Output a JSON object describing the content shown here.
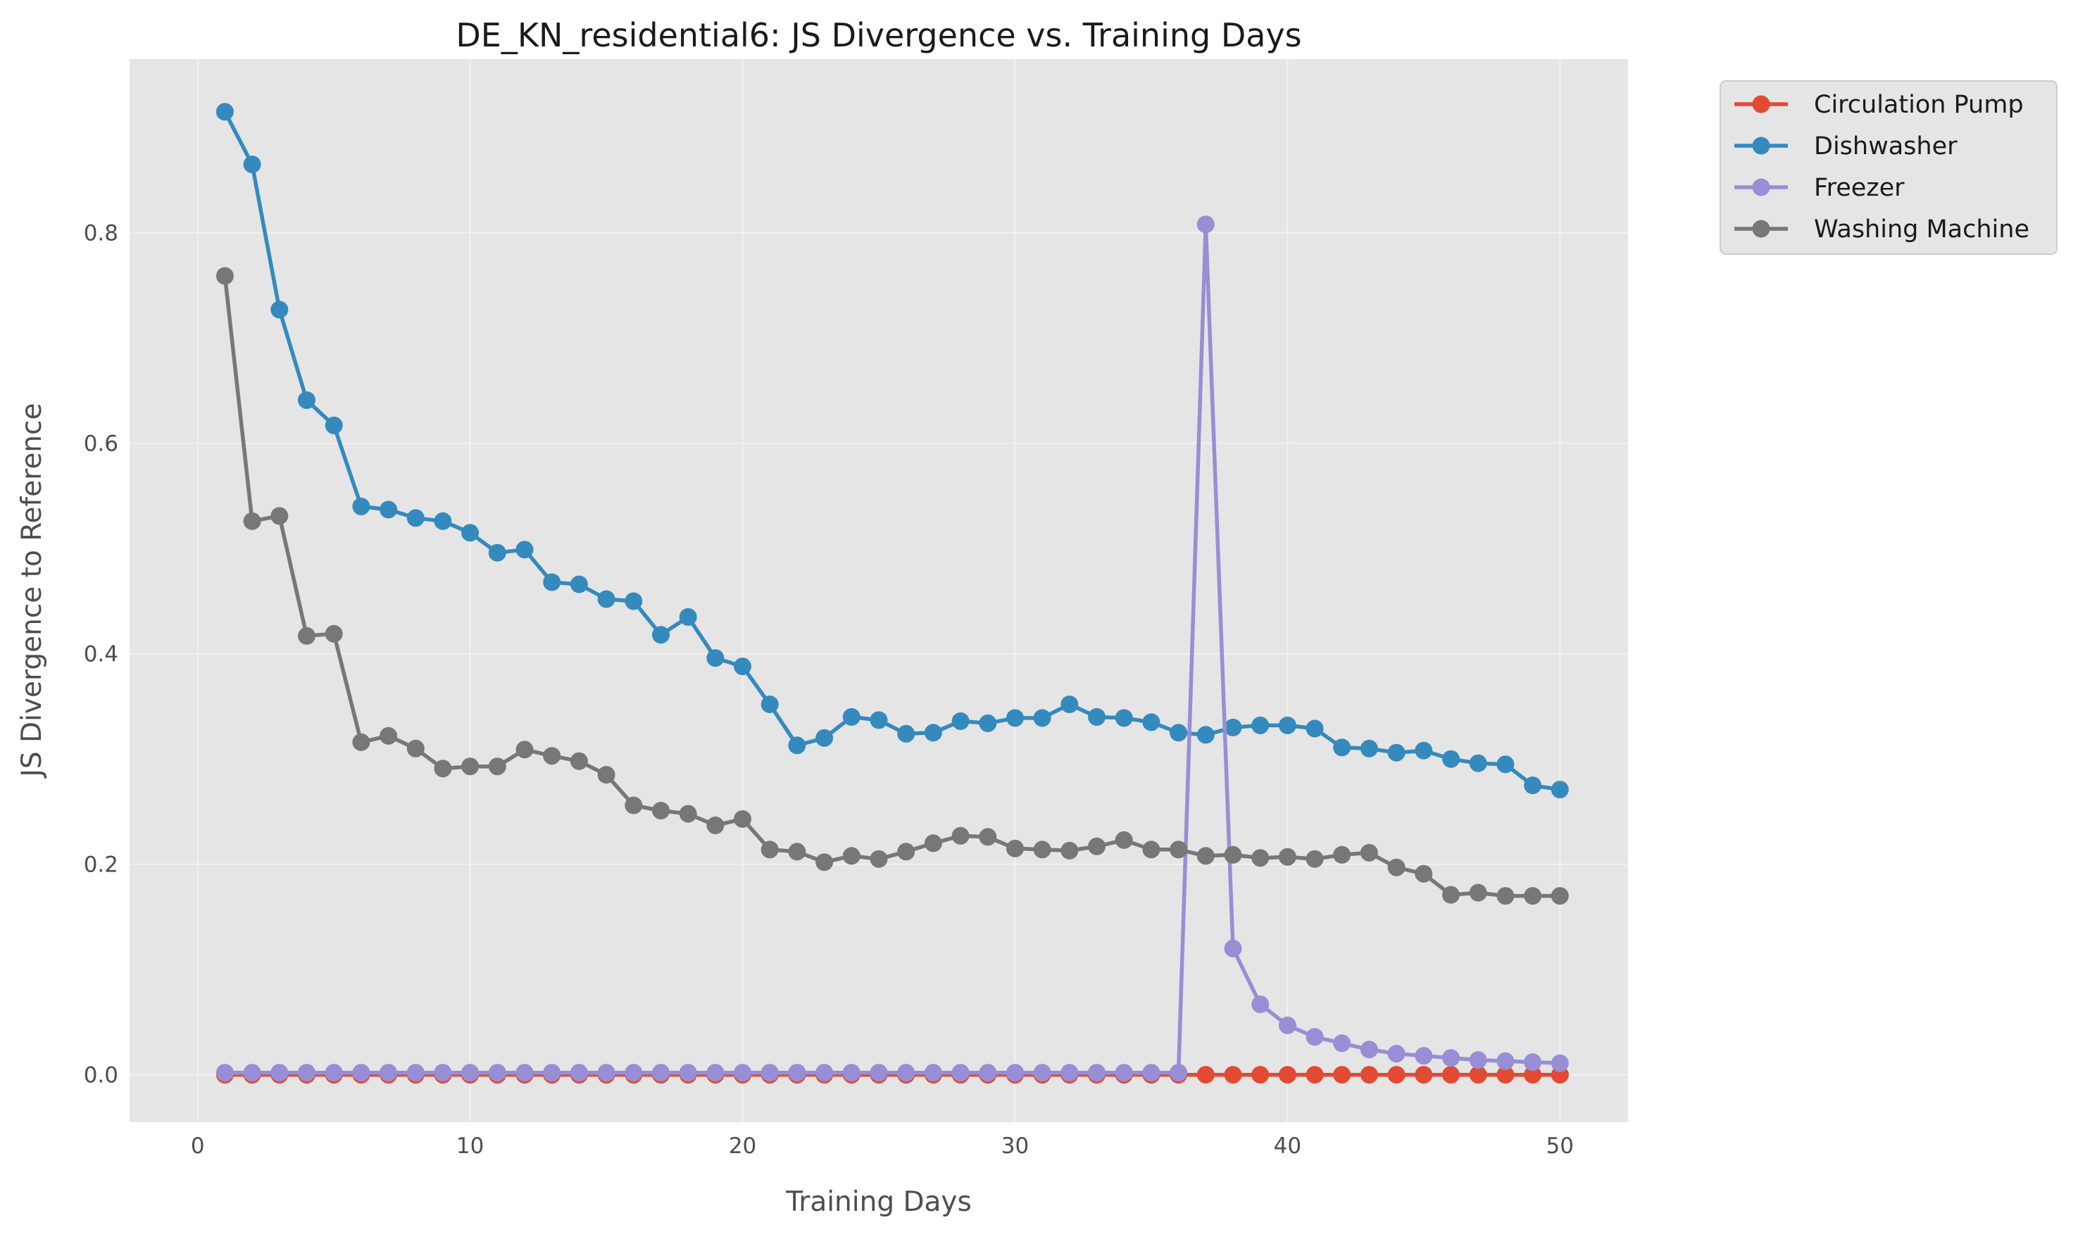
{
  "chart_data": {
    "type": "line",
    "title": "DE_KN_residential6: JS Divergence vs. Training Days",
    "xlabel": "Training Days",
    "ylabel": "JS Divergence to Reference",
    "xlim": [
      -2.5,
      52.5
    ],
    "ylim": [
      -0.045,
      0.965
    ],
    "xticks": [
      0,
      10,
      20,
      30,
      40,
      50
    ],
    "xtick_labels": [
      "0",
      "10",
      "20",
      "30",
      "40",
      "50"
    ],
    "yticks": [
      0.0,
      0.2,
      0.4,
      0.6,
      0.8
    ],
    "ytick_labels": [
      "0.0",
      "0.2",
      "0.4",
      "0.6",
      "0.8"
    ],
    "grid": true,
    "legend_position": "outside-top-right",
    "colors": {
      "plot_background": "#e5e5e5",
      "grid": "#f2f2f2"
    },
    "x": [
      1,
      2,
      3,
      4,
      5,
      6,
      7,
      8,
      9,
      10,
      11,
      12,
      13,
      14,
      15,
      16,
      17,
      18,
      19,
      20,
      21,
      22,
      23,
      24,
      25,
      26,
      27,
      28,
      29,
      30,
      31,
      32,
      33,
      34,
      35,
      36,
      37,
      38,
      39,
      40,
      41,
      42,
      43,
      44,
      45,
      46,
      47,
      48,
      49,
      50
    ],
    "series": [
      {
        "name": "Circulation Pump",
        "color": "#e24a33",
        "values": [
          0,
          0,
          0,
          0,
          0,
          0,
          0,
          0,
          0,
          0,
          0,
          0,
          0,
          0,
          0,
          0,
          0,
          0,
          0,
          0,
          0,
          0,
          0,
          0,
          0,
          0,
          0,
          0,
          0,
          0,
          0,
          0,
          0,
          0,
          0,
          0,
          0,
          0,
          0,
          0,
          0,
          0,
          0,
          0,
          0,
          0,
          0,
          0,
          0,
          0
        ]
      },
      {
        "name": "Dishwasher",
        "color": "#348abd",
        "values": [
          0.915,
          0.865,
          0.727,
          0.641,
          0.617,
          0.54,
          0.537,
          0.529,
          0.526,
          0.515,
          0.496,
          0.499,
          0.468,
          0.466,
          0.452,
          0.45,
          0.418,
          0.435,
          0.396,
          0.388,
          0.352,
          0.313,
          0.32,
          0.34,
          0.337,
          0.324,
          0.325,
          0.336,
          0.334,
          0.339,
          0.339,
          0.352,
          0.34,
          0.339,
          0.335,
          0.325,
          0.323,
          0.33,
          0.332,
          0.332,
          0.329,
          0.311,
          0.31,
          0.306,
          0.308,
          0.3,
          0.296,
          0.295,
          0.275,
          0.271
        ]
      },
      {
        "name": "Freezer",
        "color": "#988ed5",
        "values": [
          0.002,
          0.002,
          0.002,
          0.002,
          0.002,
          0.002,
          0.002,
          0.002,
          0.002,
          0.002,
          0.002,
          0.002,
          0.002,
          0.002,
          0.002,
          0.002,
          0.002,
          0.002,
          0.002,
          0.002,
          0.002,
          0.002,
          0.002,
          0.002,
          0.002,
          0.002,
          0.002,
          0.002,
          0.002,
          0.002,
          0.002,
          0.002,
          0.002,
          0.002,
          0.002,
          0.002,
          0.808,
          0.12,
          0.067,
          0.047,
          0.036,
          0.03,
          0.024,
          0.02,
          0.018,
          0.016,
          0.014,
          0.013,
          0.012,
          0.011
        ]
      },
      {
        "name": "Washing Machine",
        "color": "#777777",
        "values": [
          0.759,
          0.526,
          0.531,
          0.417,
          0.419,
          0.316,
          0.322,
          0.31,
          0.291,
          0.293,
          0.293,
          0.309,
          0.303,
          0.298,
          0.285,
          0.256,
          0.251,
          0.248,
          0.237,
          0.243,
          0.214,
          0.212,
          0.202,
          0.208,
          0.205,
          0.212,
          0.22,
          0.227,
          0.226,
          0.215,
          0.214,
          0.213,
          0.217,
          0.223,
          0.214,
          0.214,
          0.208,
          0.209,
          0.206,
          0.207,
          0.205,
          0.209,
          0.211,
          0.197,
          0.191,
          0.171,
          0.173,
          0.17,
          0.17,
          0.17
        ]
      }
    ]
  }
}
